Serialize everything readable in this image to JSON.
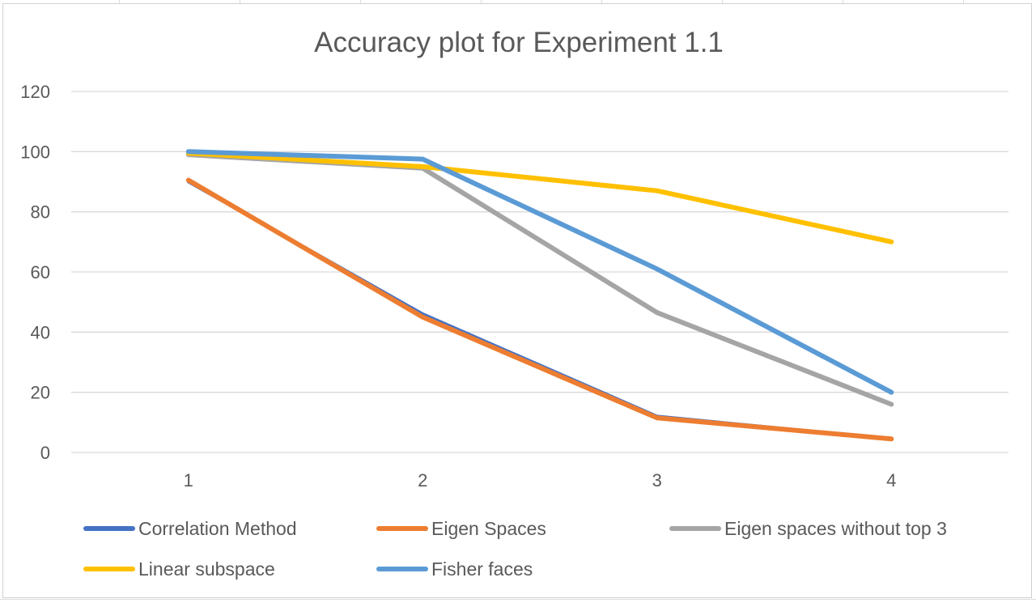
{
  "chart_data": {
    "type": "line",
    "title": "Accuracy plot for Experiment 1.1",
    "xlabel": "",
    "ylabel": "",
    "categories": [
      "1",
      "2",
      "3",
      "4"
    ],
    "ylim": [
      0,
      120
    ],
    "yticks": [
      "0",
      "20",
      "40",
      "60",
      "80",
      "100",
      "120"
    ],
    "grid": "horizontal",
    "legend_position": "bottom",
    "series": [
      {
        "name": "Correlation Method",
        "color": "#4472C4",
        "values": [
          90,
          46,
          12,
          4.5
        ]
      },
      {
        "name": "Eigen Spaces",
        "color": "#ED7D31",
        "values": [
          90.5,
          45,
          11.5,
          4.5
        ]
      },
      {
        "name": "Eigen spaces without top 3",
        "color": "#A5A5A5",
        "values": [
          99,
          94.5,
          46.5,
          16
        ]
      },
      {
        "name": "Linear subspace",
        "color": "#FFC000",
        "values": [
          99.5,
          95,
          87,
          70
        ]
      },
      {
        "name": "Fisher faces",
        "color": "#5B9BD5",
        "values": [
          100,
          97.5,
          61,
          20
        ]
      }
    ]
  }
}
